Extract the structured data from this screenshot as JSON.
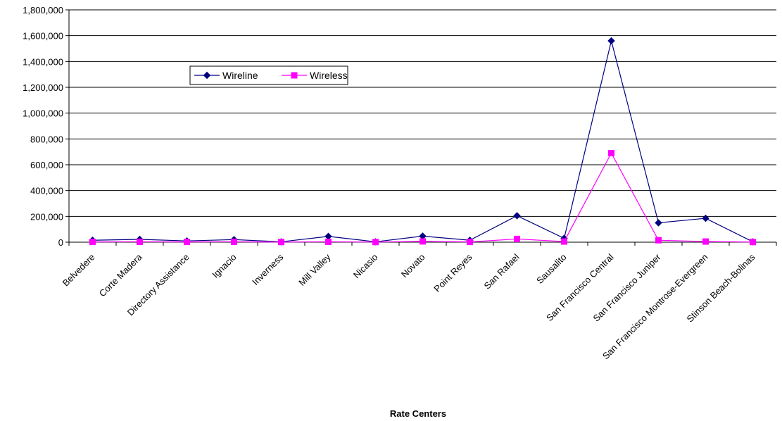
{
  "chart_data": {
    "type": "line",
    "title": "",
    "xlabel": "Rate Centers",
    "ylabel": "",
    "ylim": [
      0,
      1800000
    ],
    "ytick_step": 200000,
    "yticks": [
      "0",
      "200,000",
      "400,000",
      "600,000",
      "800,000",
      "1,000,000",
      "1,200,000",
      "1,400,000",
      "1,600,000",
      "1,800,000"
    ],
    "grid": true,
    "legend_position": "upper-left",
    "categories": [
      "Belvedere",
      "Corte Madera",
      "Directory Assistance",
      "Ignacio",
      "Inverness",
      "Mill Valley",
      "Nicasio",
      "Novato",
      "Point Reyes",
      "San Rafael",
      "Sausalito",
      "San Francisco Central",
      "San Francisco Juniper",
      "San Francisco Montrose-Evergreen",
      "Stinson Beach-Bolinas"
    ],
    "series": [
      {
        "name": "Wireline",
        "color": "#000080",
        "marker": "diamond",
        "values": [
          15000,
          22000,
          10000,
          20000,
          3000,
          45000,
          3000,
          47000,
          15000,
          205000,
          30000,
          1560000,
          150000,
          185000,
          3000
        ]
      },
      {
        "name": "Wireless",
        "color": "#FF00FF",
        "marker": "square",
        "values": [
          2000,
          3000,
          2000,
          3000,
          1000,
          3000,
          1000,
          6000,
          2000,
          25000,
          5000,
          690000,
          15000,
          5000,
          1000
        ]
      }
    ]
  }
}
